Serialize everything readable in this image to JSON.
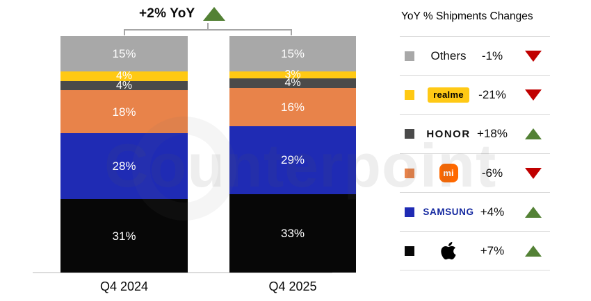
{
  "chart_data": {
    "type": "bar",
    "stacked": true,
    "annotation": "+2% YoY",
    "annotation_direction": "up",
    "legend_title": "YoY % Shipments Changes",
    "legend_position": "right",
    "categories": [
      "Q4 2024",
      "Q4 2025"
    ],
    "ylim": [
      0,
      100
    ],
    "grid": false,
    "unit": "%",
    "series": [
      {
        "name": "Others",
        "display": "Others",
        "values": [
          15,
          15
        ],
        "color": "#a8a8a8",
        "change": "-1%",
        "direction": "down"
      },
      {
        "name": "realme",
        "display": "realme",
        "values": [
          4,
          3
        ],
        "color": "#ffc913",
        "change": "-21%",
        "direction": "down",
        "logo_color": "#ffc915"
      },
      {
        "name": "HONOR",
        "display": "HONOR",
        "values": [
          4,
          4
        ],
        "color": "#4a4a4a",
        "change": "+18%",
        "direction": "up"
      },
      {
        "name": "Xiaomi",
        "display": "mi",
        "values": [
          18,
          16
        ],
        "color": "#e8834a",
        "change": "-6%",
        "direction": "down",
        "logo_color": "#ff6900"
      },
      {
        "name": "Samsung",
        "display": "SAMSUNG",
        "values": [
          28,
          29
        ],
        "color": "#1f2bb4",
        "change": "+4%",
        "direction": "up",
        "logo_color": "#1428a0"
      },
      {
        "name": "Apple",
        "display": "",
        "values": [
          31,
          33
        ],
        "color": "#070707",
        "change": "+7%",
        "direction": "up"
      }
    ],
    "status_colors": {
      "up": "#538135",
      "down": "#c00000"
    },
    "watermark": "Counterpoint"
  }
}
